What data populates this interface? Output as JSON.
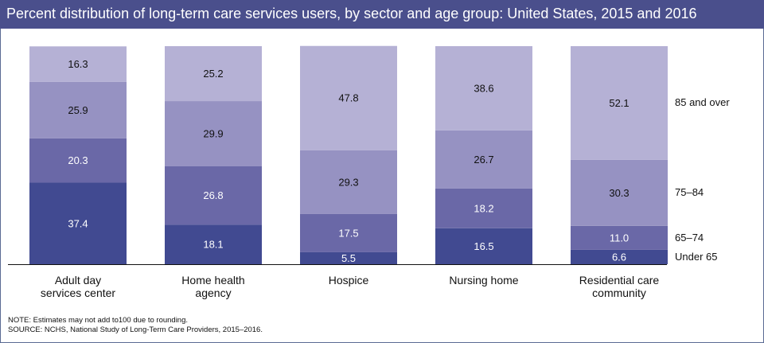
{
  "title": "Percent distribution of long-term care services users, by sector and age group: United States, 2015 and 2016",
  "colors": {
    "title_bg": "#4a4f8c",
    "under_65": "#414a91",
    "age_65_74": "#6a68a7",
    "age_75_84": "#9692c2",
    "age_85_over": "#b5b1d5"
  },
  "chart_data": {
    "type": "bar",
    "stacked": true,
    "categories": [
      [
        "Adult day",
        "services center"
      ],
      [
        "Home health",
        "agency"
      ],
      [
        "Hospice"
      ],
      [
        "Nursing home"
      ],
      [
        "Residential care",
        "community"
      ]
    ],
    "series": [
      {
        "name": "Under 65",
        "values": [
          37.4,
          18.1,
          5.5,
          16.5,
          6.6
        ]
      },
      {
        "name": "65–74",
        "values": [
          20.3,
          26.8,
          17.5,
          18.2,
          11.0
        ]
      },
      {
        "name": "75–84",
        "values": [
          25.9,
          29.9,
          29.3,
          26.7,
          30.3
        ]
      },
      {
        "name": "85 and over",
        "values": [
          16.3,
          25.2,
          47.8,
          38.6,
          52.1
        ]
      }
    ],
    "ylim": [
      0,
      100
    ]
  },
  "notes": {
    "note": "NOTE: Estimates may not add to100 due to rounding.",
    "source": "SOURCE: NCHS, National Study of Long-Term Care Providers, 2015–2016."
  }
}
